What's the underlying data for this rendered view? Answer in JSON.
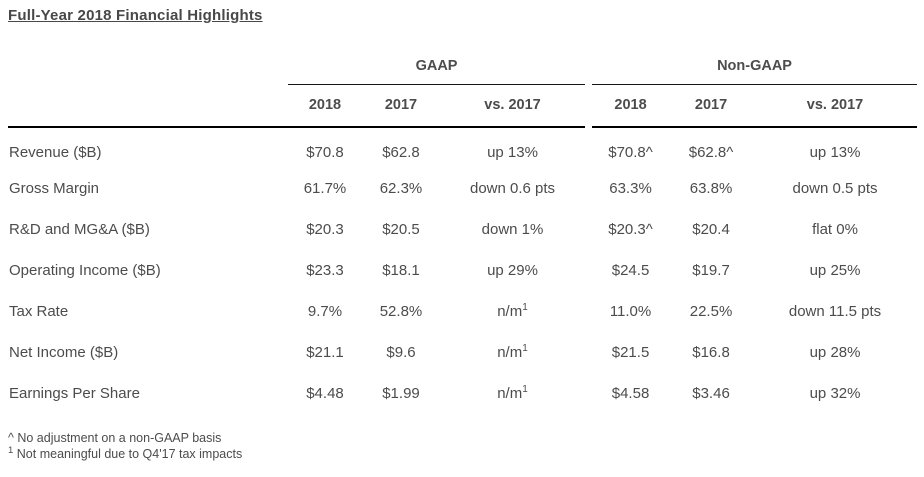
{
  "title": "Full-Year 2018 Financial Highlights",
  "colors": {
    "text_gray": "#4c4c4c",
    "rule_black": "#000000"
  },
  "table": {
    "groups": {
      "gaap": "GAAP",
      "non_gaap": "Non-GAAP"
    },
    "columns": {
      "y2018": "2018",
      "y2017": "2017",
      "vs2017": "vs. 2017"
    },
    "rows": [
      {
        "label": "Revenue ($B)",
        "g2018": "$70.8",
        "g2017": "$62.8",
        "gvs": "up 13%",
        "n2018": "$70.8^",
        "n2017": "$62.8^",
        "nvs": "up 13%"
      },
      {
        "label": "Gross Margin",
        "g2018": "61.7%",
        "g2017": "62.3%",
        "gvs": "down 0.6 pts",
        "n2018": "63.3%",
        "n2017": "63.8%",
        "nvs": "down 0.5 pts"
      },
      {
        "label": "R&D and MG&A ($B)",
        "g2018": "$20.3",
        "g2017": "$20.5",
        "gvs": "down 1%",
        "n2018": "$20.3^",
        "n2017": "$20.4",
        "nvs": "flat 0%"
      },
      {
        "label": "Operating Income ($B)",
        "g2018": "$23.3",
        "g2017": "$18.1",
        "gvs": "up 29%",
        "n2018": "$24.5",
        "n2017": "$19.7",
        "nvs": "up 25%"
      },
      {
        "label": "Tax Rate",
        "g2018": "9.7%",
        "g2017": "52.8%",
        "gvs": "n/m",
        "gvs_sup": "1",
        "n2018": "11.0%",
        "n2017": "22.5%",
        "nvs": "down 11.5 pts"
      },
      {
        "label": "Net Income ($B)",
        "g2018": "$21.1",
        "g2017": "$9.6",
        "gvs": "n/m",
        "gvs_sup": "1",
        "n2018": "$21.5",
        "n2017": "$16.8",
        "nvs": "up 28%"
      },
      {
        "label": "Earnings Per Share",
        "g2018": "$4.48",
        "g2017": "$1.99",
        "gvs": "n/m",
        "gvs_sup": "1",
        "n2018": "$4.58",
        "n2017": "$3.46",
        "nvs": "up 32%"
      }
    ]
  },
  "footnotes": {
    "caret": {
      "marker": "^",
      "text": "No adjustment on a non-GAAP basis"
    },
    "one": {
      "marker": "1",
      "text": "Not meaningful due to Q4'17 tax impacts"
    }
  }
}
